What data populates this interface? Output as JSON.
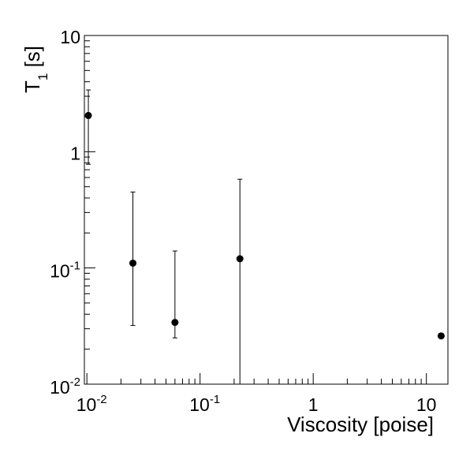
{
  "chart_data": {
    "type": "scatter",
    "xlabel": "Viscosity [poise]",
    "ylabel": {
      "main": "T",
      "sub": "1",
      "unit": "[s]"
    },
    "xscale": "log",
    "yscale": "log",
    "xlim": [
      0.0095,
      15.5
    ],
    "ylim": [
      0.01,
      10
    ],
    "grid": false,
    "x_tick_labels": [
      {
        "base": "10",
        "exp": "-2"
      },
      {
        "base": "10",
        "exp": "-1"
      },
      {
        "base": "1",
        "exp": ""
      },
      {
        "base": "10",
        "exp": ""
      }
    ],
    "y_tick_labels": [
      {
        "base": "10",
        "exp": "-2"
      },
      {
        "base": "10",
        "exp": "-1"
      },
      {
        "base": "1",
        "exp": ""
      },
      {
        "base": "10",
        "exp": ""
      }
    ],
    "points": [
      {
        "x": 0.0103,
        "y": 2.05,
        "y_low": 0.78,
        "y_high": 3.4
      },
      {
        "x": 0.0255,
        "y": 0.11,
        "y_low": 0.032,
        "y_high": 0.45
      },
      {
        "x": 0.06,
        "y": 0.034,
        "y_low": 0.025,
        "y_high": 0.14
      },
      {
        "x": 0.225,
        "y": 0.12,
        "y_low": 0.0095,
        "y_high": 0.58
      },
      {
        "x": 13.5,
        "y": 0.026
      }
    ]
  }
}
